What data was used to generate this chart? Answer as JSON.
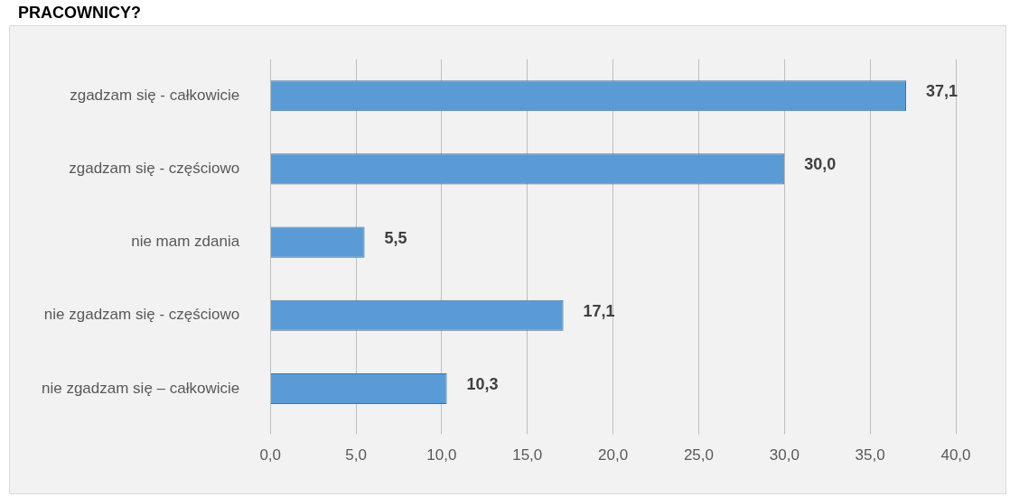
{
  "chart_data": {
    "type": "bar",
    "orientation": "horizontal",
    "title": "PRACOWNICY?",
    "categories": [
      "zgadzam się - całkowicie",
      "zgadzam się - częściowo",
      "nie mam zdania",
      "nie zgadzam się - częściowo",
      "nie zgadzam się – całkowicie"
    ],
    "values": [
      37.1,
      30.0,
      5.5,
      17.1,
      10.3
    ],
    "color": "#5b9bd5",
    "value_labels": [
      "37,1",
      "30,0",
      "5,5",
      "17,1",
      "10,3"
    ],
    "xlim": [
      0,
      40
    ],
    "xticks": [
      {
        "value": 0,
        "label": "0,0"
      },
      {
        "value": 5,
        "label": "5,0"
      },
      {
        "value": 10,
        "label": "10,0"
      },
      {
        "value": 15,
        "label": "15,0"
      },
      {
        "value": 20,
        "label": "20,0"
      },
      {
        "value": 25,
        "label": "25,0"
      },
      {
        "value": 30,
        "label": "30,0"
      },
      {
        "value": 35,
        "label": "35,0"
      },
      {
        "value": 40,
        "label": "40,0"
      }
    ],
    "grid": "x",
    "legend": false
  }
}
